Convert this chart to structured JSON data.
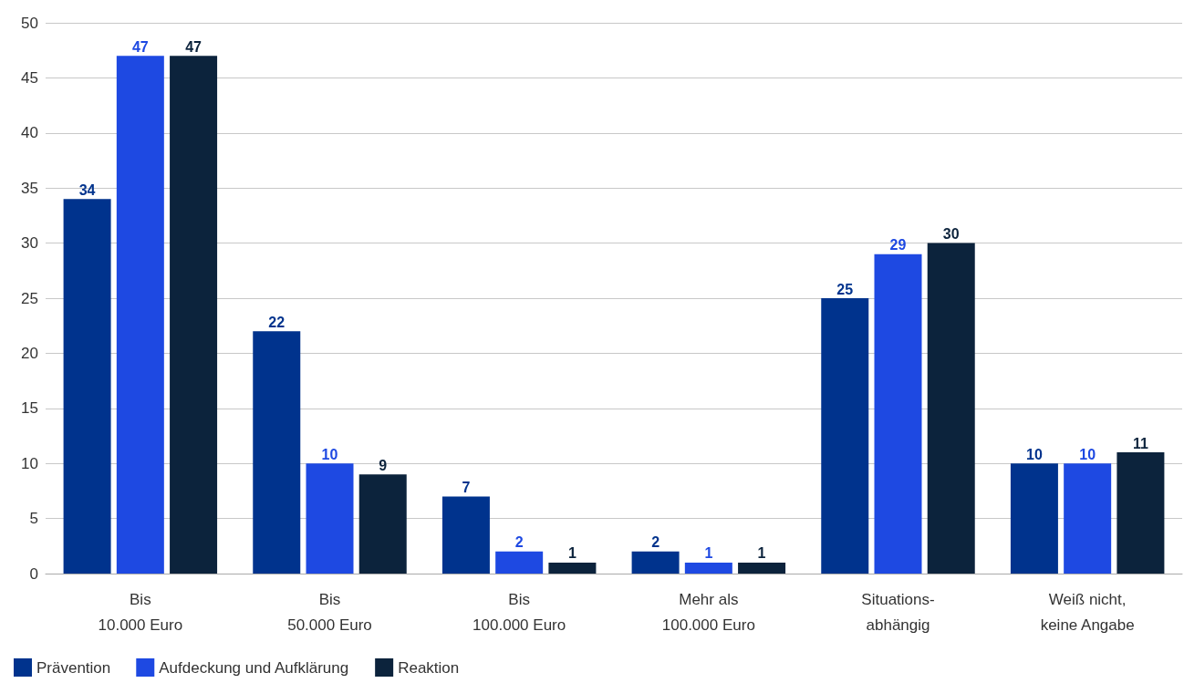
{
  "chart_data": {
    "type": "bar",
    "categories": [
      "Bis\n10.000 Euro",
      "Bis\n50.000 Euro",
      "Bis\n100.000 Euro",
      "Mehr als\n100.000 Euro",
      "Situations-\nabhängig",
      "Weiß nicht,\nkeine Angabe"
    ],
    "series": [
      {
        "name": "Prävention",
        "color": "#00338d",
        "values": [
          34,
          22,
          7,
          2,
          25,
          10
        ]
      },
      {
        "name": "Aufdeckung und Aufklärung",
        "color": "#1e49e2",
        "values": [
          47,
          10,
          2,
          1,
          29,
          10
        ]
      },
      {
        "name": "Reaktion",
        "color": "#0c233c",
        "values": [
          47,
          9,
          1,
          1,
          30,
          11
        ]
      }
    ],
    "ylim": [
      0,
      50
    ],
    "yticks": [
      0,
      5,
      10,
      15,
      20,
      25,
      30,
      35,
      40,
      45,
      50
    ],
    "grid": "y",
    "legend": "bottom left",
    "data_labels": true
  }
}
